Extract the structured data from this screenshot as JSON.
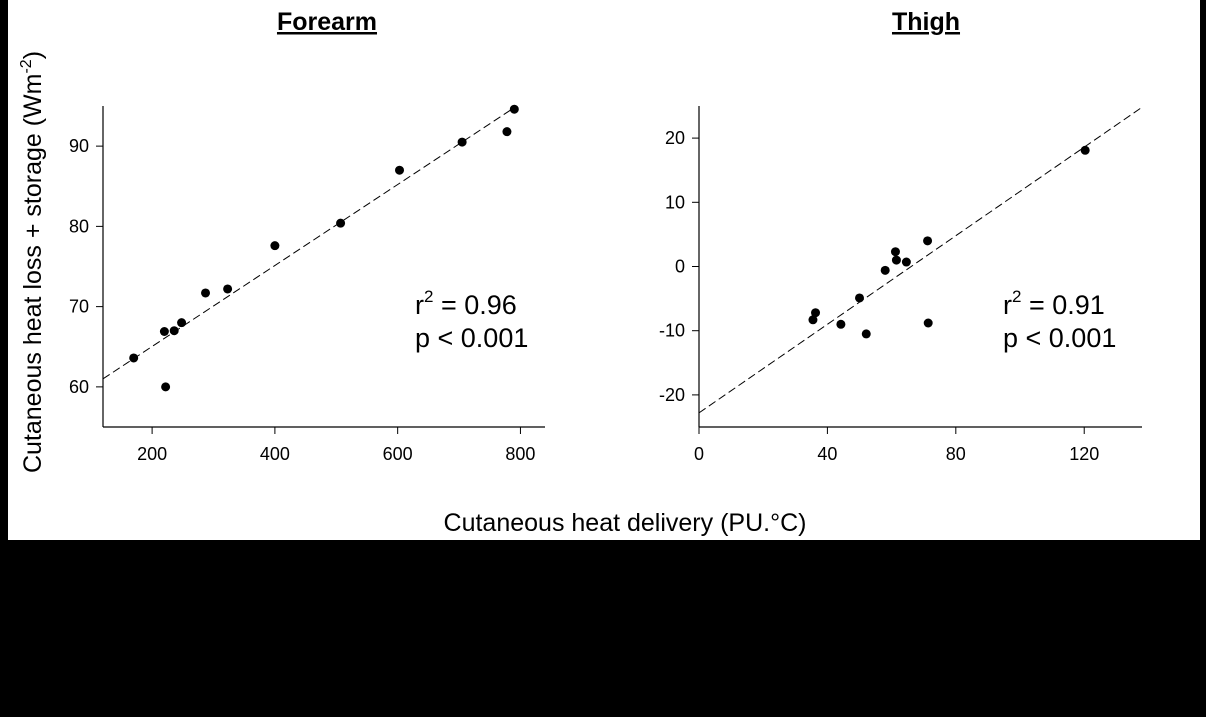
{
  "colors": {
    "background": "#000000",
    "panel": "#ffffff",
    "ink": "#000000"
  },
  "shared": {
    "ylabel": "Cutaneous heat loss + storage (Wm",
    "ylabel_sup": "-2",
    "ylabel_close": ")",
    "xlabel": "Cutaneous heat delivery (PU.°C)"
  },
  "chart_data": [
    {
      "type": "scatter",
      "title": "Forearm",
      "xlim": [
        120,
        840
      ],
      "ylim": [
        55,
        95
      ],
      "xticks": [
        200,
        400,
        600,
        800
      ],
      "yticks": [
        60,
        70,
        80,
        90
      ],
      "points": [
        {
          "x": 170,
          "y": 63.6
        },
        {
          "x": 220,
          "y": 66.9
        },
        {
          "x": 222,
          "y": 60.0
        },
        {
          "x": 236,
          "y": 67.0
        },
        {
          "x": 248,
          "y": 68.0
        },
        {
          "x": 287,
          "y": 71.7
        },
        {
          "x": 323,
          "y": 72.2
        },
        {
          "x": 400,
          "y": 77.6
        },
        {
          "x": 507,
          "y": 80.4
        },
        {
          "x": 603,
          "y": 87.0
        },
        {
          "x": 705,
          "y": 90.5
        },
        {
          "x": 778,
          "y": 91.8
        },
        {
          "x": 790,
          "y": 94.6
        }
      ],
      "fit": {
        "x1": 120,
        "y1": 61.0,
        "x2": 790,
        "y2": 94.8
      },
      "stats": {
        "r2_prefix": "r",
        "r2_sup": "2",
        "r2_value": " = 0.96",
        "p": "p < 0.001"
      },
      "grid": false
    },
    {
      "type": "scatter",
      "title": "Thigh",
      "xlim": [
        0,
        138
      ],
      "ylim": [
        -25,
        25
      ],
      "xticks": [
        0,
        40,
        80,
        120
      ],
      "yticks": [
        -20,
        -10,
        0,
        10,
        20
      ],
      "points": [
        {
          "x": 35.5,
          "y": -8.3
        },
        {
          "x": 36.3,
          "y": -7.2
        },
        {
          "x": 44.2,
          "y": -9.0
        },
        {
          "x": 50.0,
          "y": -4.9
        },
        {
          "x": 52.1,
          "y": -10.5
        },
        {
          "x": 58.0,
          "y": -0.6
        },
        {
          "x": 61.2,
          "y": 2.3
        },
        {
          "x": 61.5,
          "y": 1.0
        },
        {
          "x": 64.6,
          "y": 0.7
        },
        {
          "x": 71.2,
          "y": 4.0
        },
        {
          "x": 71.4,
          "y": -8.8
        },
        {
          "x": 120.3,
          "y": 18.1
        }
      ],
      "fit": {
        "x1": 0,
        "y1": -22.8,
        "x2": 138,
        "y2": 24.8
      },
      "stats": {
        "r2_prefix": "r",
        "r2_sup": "2",
        "r2_value": " = 0.91",
        "p": "p < 0.001"
      },
      "grid": false
    }
  ]
}
